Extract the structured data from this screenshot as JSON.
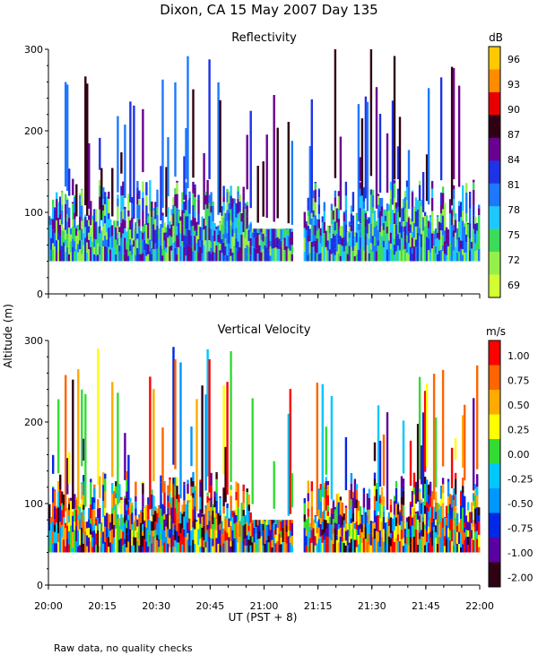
{
  "figure": {
    "title": "Dixon, CA 15 May 2007  Day 135",
    "ylabel": "Altitude (m)",
    "xlabel": "UT  (PST + 8)",
    "footnote": "Raw data, no quality checks"
  },
  "chart_data": [
    {
      "type": "heatmap",
      "title": "Reflectivity",
      "units": "dB",
      "xlabel": "UT  (PST + 8)",
      "ylabel": "Altitude (m)",
      "xlim_minutes": [
        0,
        120
      ],
      "ylim": [
        0,
        300
      ],
      "x_ticks": [
        "20:00",
        "20:15",
        "20:30",
        "20:45",
        "21:00",
        "21:15",
        "21:30",
        "21:45",
        "22:00"
      ],
      "y_ticks": [
        0,
        100,
        200,
        300
      ],
      "colorbar": {
        "labels": [
          "96",
          "93",
          "90",
          "87",
          "84",
          "81",
          "78",
          "75",
          "72",
          "69"
        ],
        "colors": [
          "#ffc800",
          "#ff8c00",
          "#e80000",
          "#300014",
          "#6a0090",
          "#1e32e6",
          "#1e78ff",
          "#1ec8ff",
          "#3cdc5a",
          "#96f04a",
          "#d2ff32"
        ]
      },
      "data_floor_m": 40,
      "gap_utc": [
        "21:08",
        "21:11"
      ]
    },
    {
      "type": "heatmap",
      "title": "Vertical Velocity",
      "units": "m/s",
      "xlabel": "UT  (PST + 8)",
      "ylabel": "Altitude (m)",
      "xlim_minutes": [
        0,
        120
      ],
      "ylim": [
        0,
        300
      ],
      "x_ticks": [
        "20:00",
        "20:15",
        "20:30",
        "20:45",
        "21:00",
        "21:15",
        "21:30",
        "21:45",
        "22:00"
      ],
      "y_ticks": [
        0,
        100,
        200,
        300
      ],
      "colorbar": {
        "labels": [
          "1.00",
          "0.75",
          "0.50",
          "0.25",
          "0.00",
          "-0.25",
          "-0.50",
          "-0.75",
          "-1.00",
          "-2.00"
        ],
        "colors": [
          "#ff0000",
          "#ff6400",
          "#ffaa00",
          "#ffff00",
          "#32dc32",
          "#00c8ff",
          "#0096ff",
          "#0028e6",
          "#5a00a0",
          "#300014"
        ]
      },
      "data_floor_m": 40,
      "gap_utc": [
        "21:08",
        "21:11"
      ]
    }
  ]
}
